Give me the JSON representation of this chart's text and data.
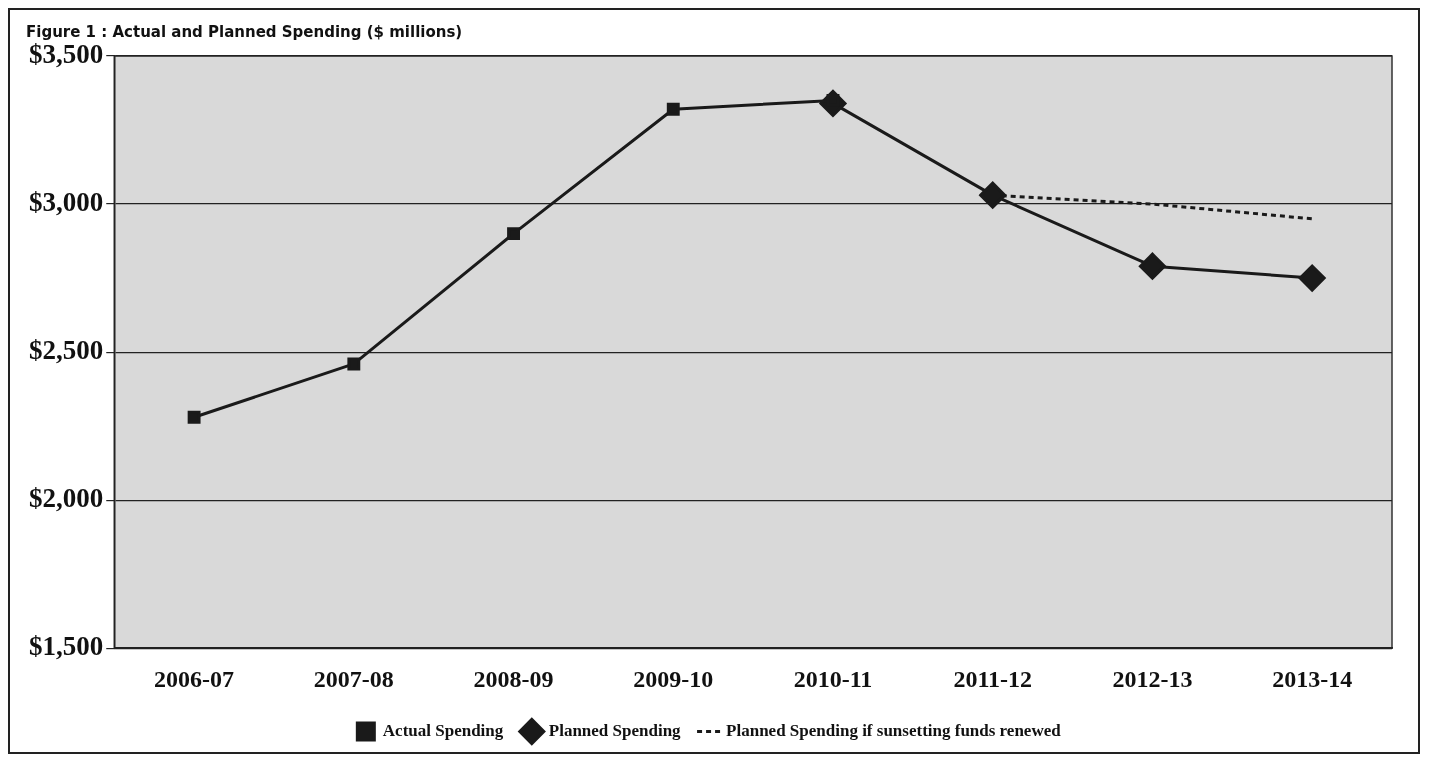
{
  "chart_data": {
    "type": "line",
    "title": "Figure 1 : Actual and Planned Spending ($ millions)",
    "categories": [
      "2006-07",
      "2007-08",
      "2008-09",
      "2009-10",
      "2010-11",
      "2011-12",
      "2012-13",
      "2013-14"
    ],
    "series": [
      {
        "name": "Actual Spending",
        "color": "#1a1a1a",
        "marker": "square",
        "line_style": "solid",
        "values": [
          2280,
          2460,
          2900,
          3320,
          3350,
          null,
          null,
          null
        ]
      },
      {
        "name": "Planned Spending",
        "color": "#1a1a1a",
        "marker": "diamond",
        "line_style": "solid",
        "values": [
          null,
          null,
          null,
          null,
          3340,
          3030,
          2790,
          2750
        ]
      },
      {
        "name": "Planned Spending if sunsetting funds renewed",
        "color": "#1a1a1a",
        "marker": "none",
        "line_style": "dotted",
        "values": [
          null,
          null,
          null,
          null,
          null,
          3030,
          3000,
          2950
        ]
      }
    ],
    "ylim": [
      1500,
      3500
    ],
    "yticks": [
      {
        "value": 1500,
        "label": "$1,500"
      },
      {
        "value": 2000,
        "label": "$2,000"
      },
      {
        "value": 2500,
        "label": "$2,500"
      },
      {
        "value": 3000,
        "label": "$3,000"
      },
      {
        "value": 3500,
        "label": "$3,500"
      }
    ],
    "grid": "y",
    "legend": "bottom"
  }
}
